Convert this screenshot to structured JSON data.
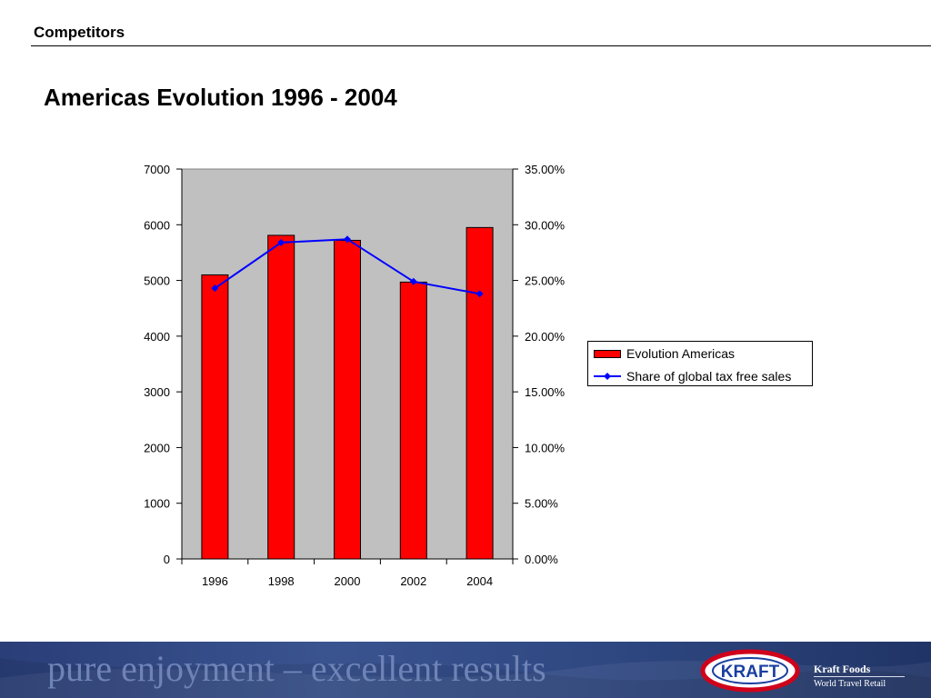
{
  "header": {
    "section": "Competitors",
    "title": "Americas Evolution 1996 - 2004"
  },
  "chart_data": {
    "type": "bar",
    "categories": [
      "1996",
      "1998",
      "2000",
      "2002",
      "2004"
    ],
    "series": [
      {
        "name": "Evolution Americas",
        "type": "bar",
        "axis": "left",
        "values": [
          5100,
          5810,
          5720,
          4970,
          5950
        ],
        "color": "#ff0000"
      },
      {
        "name": "Share of global tax free sales",
        "type": "line",
        "axis": "right",
        "values": [
          0.243,
          0.284,
          0.287,
          0.249,
          0.238
        ],
        "color": "#0000ff"
      }
    ],
    "y_left": {
      "min": 0,
      "max": 7000,
      "step": 1000,
      "ticks": [
        "0",
        "1000",
        "2000",
        "3000",
        "4000",
        "5000",
        "6000",
        "7000"
      ]
    },
    "y_right": {
      "min": 0,
      "max": 0.35,
      "step": 0.05,
      "ticks": [
        "0.00%",
        "5.00%",
        "10.00%",
        "15.00%",
        "20.00%",
        "25.00%",
        "30.00%",
        "35.00%"
      ]
    },
    "plot_background": "#c0c0c0",
    "legend_position": "right",
    "grid": false
  },
  "legend": {
    "items": [
      "Evolution Americas",
      "Share of global tax free sales"
    ]
  },
  "footer": {
    "tagline": "pure enjoyment – excellent results",
    "logo_text": "KRAFT",
    "brand": "Kraft Foods",
    "division": "World Travel Retail",
    "background": "#2f4882"
  }
}
